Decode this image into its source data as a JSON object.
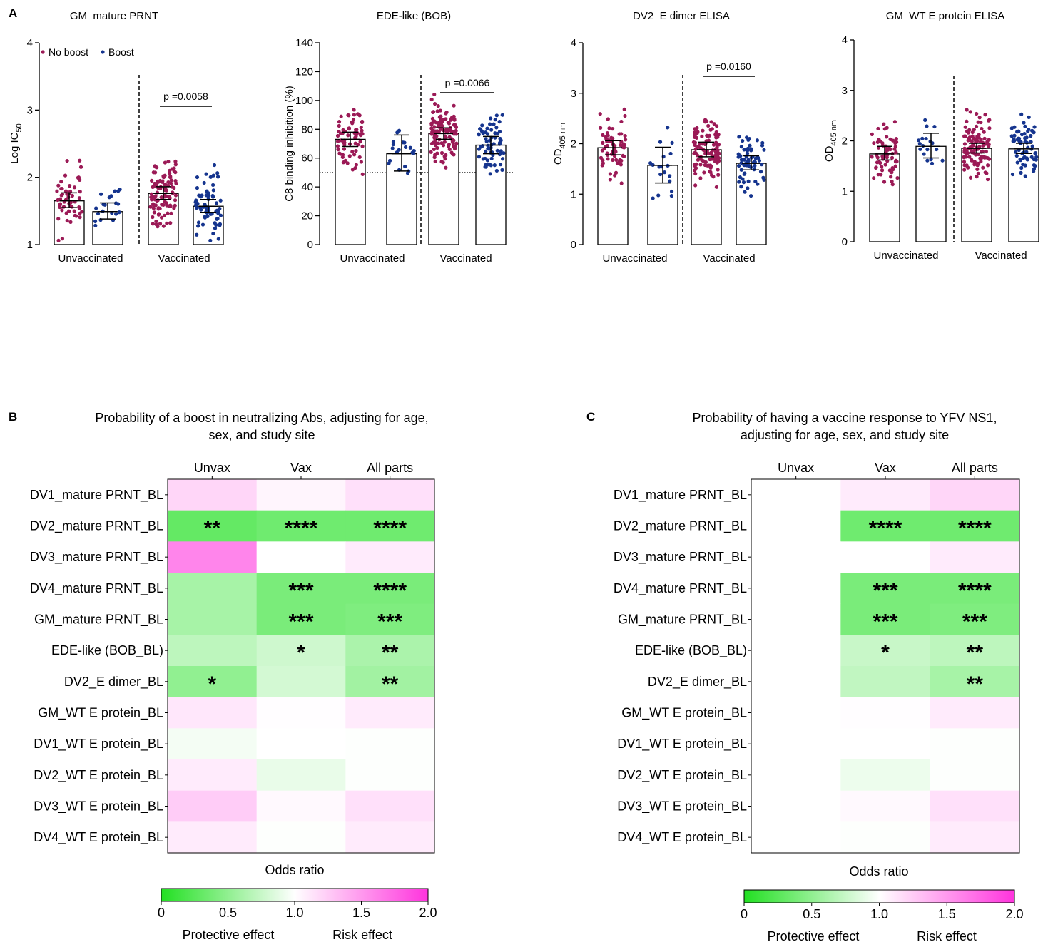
{
  "panel_labels": [
    "A",
    "B",
    "C"
  ],
  "legend": {
    "no_boost": "No boost",
    "boost": "Boost"
  },
  "colors": {
    "no_boost": "#9b1a56",
    "boost": "#15348e",
    "protective": "#22e022",
    "risk": "#ff33dd"
  },
  "chart_data": [
    {
      "type": "bar",
      "title": "GM_mature PRNT",
      "ylabel": "Log IC",
      "ylabel_sub": "50",
      "ylim": [
        1,
        4
      ],
      "yticks": [
        "1",
        "2",
        "3",
        "4"
      ],
      "groups": [
        "Unvaccinated",
        "Vaccinated"
      ],
      "series": [
        {
          "name": "No boost",
          "values": [
            1.65,
            1.76
          ],
          "ci": [
            [
              1.55,
              1.77
            ],
            [
              1.67,
              1.86
            ]
          ],
          "n": [
            55,
            100
          ]
        },
        {
          "name": "Boost",
          "values": [
            1.49,
            1.57
          ],
          "ci": [
            [
              1.38,
              1.62
            ],
            [
              1.48,
              1.67
            ]
          ],
          "n": [
            20,
            65
          ]
        }
      ],
      "comparison": {
        "label": "p =0.0058",
        "group": "Vaccinated"
      },
      "show_legend": true
    },
    {
      "type": "bar",
      "title": "EDE-like (BOB)",
      "ylabel": "C8 binding inhibition (%)",
      "ylim": [
        0,
        140
      ],
      "yticks": [
        "0",
        "20",
        "40",
        "60",
        "80",
        "100",
        "120",
        "140"
      ],
      "reference_line": 50,
      "groups": [
        "Unvaccinated",
        "Vaccinated"
      ],
      "series": [
        {
          "name": "No boost",
          "values": [
            73,
            77
          ],
          "ci": [
            [
              68,
              78
            ],
            [
              73,
              81
            ]
          ],
          "n": [
            70,
            120
          ]
        },
        {
          "name": "Boost",
          "values": [
            63,
            69
          ],
          "ci": [
            [
              51,
              76
            ],
            [
              63,
              75
            ]
          ],
          "n": [
            20,
            65
          ]
        }
      ],
      "comparison": {
        "label": "p =0.0066",
        "group": "Vaccinated"
      },
      "show_legend": false
    },
    {
      "type": "bar",
      "title": "DV2_E dimer ELISA",
      "ylabel": "OD",
      "ylabel_sub": "405 nm",
      "ylim": [
        0,
        4
      ],
      "yticks": [
        "0",
        "1",
        "2",
        "3",
        "4"
      ],
      "groups": [
        "Unvaccinated",
        "Vaccinated"
      ],
      "series": [
        {
          "name": "No boost",
          "values": [
            1.92,
            1.88
          ],
          "ci": [
            [
              1.78,
              2.06
            ],
            [
              1.74,
              2.03
            ]
          ],
          "n": [
            70,
            120
          ]
        },
        {
          "name": "Boost",
          "values": [
            1.57,
            1.61
          ],
          "ci": [
            [
              1.22,
              1.93
            ],
            [
              1.48,
              1.76
            ]
          ],
          "n": [
            18,
            65
          ]
        }
      ],
      "comparison": {
        "label": "p =0.0160",
        "group": "Vaccinated"
      },
      "show_legend": false
    },
    {
      "type": "bar",
      "title": "GM_WT E protein ELISA",
      "ylabel": "OD",
      "ylabel_sub": "405 nm",
      "ylim": [
        0,
        4
      ],
      "yticks": [
        "0",
        "1",
        "2",
        "3",
        "4"
      ],
      "groups": [
        "Unvaccinated",
        "Vaccinated"
      ],
      "series": [
        {
          "name": "No boost",
          "values": [
            1.74,
            1.85
          ],
          "ci": [
            [
              1.62,
              1.89
            ],
            [
              1.76,
              1.95
            ]
          ],
          "n": [
            70,
            120
          ]
        },
        {
          "name": "Boost",
          "values": [
            1.89,
            1.84
          ],
          "ci": [
            [
              1.66,
              2.15
            ],
            [
              1.75,
              1.95
            ]
          ],
          "n": [
            18,
            65
          ]
        }
      ],
      "comparison": null,
      "show_legend": false
    },
    {
      "type": "heatmap",
      "title": "Probability of a boost in neutralizing Abs, adjusting for age,",
      "title_line2": "sex, and study site",
      "columns": [
        "Unvax",
        "Vax",
        "All parts"
      ],
      "rows": [
        "DV1_mature PRNT_BL",
        "DV2_mature PRNT_BL",
        "DV3_mature PRNT_BL",
        "DV4_mature PRNT_BL",
        "GM_mature PRNT_BL",
        "EDE-like (BOB_BL)",
        "DV2_E dimer_BL",
        "GM_WT E protein_BL",
        "DV1_WT E protein_BL",
        "DV2_WT E protein_BL",
        "DV3_WT E protein_BL",
        "DV4_WT E protein_BL"
      ],
      "odds_ratio": [
        [
          1.2,
          1.05,
          1.15
        ],
        [
          0.3,
          0.35,
          0.35
        ],
        [
          1.6,
          1.0,
          1.1
        ],
        [
          0.6,
          0.4,
          0.4
        ],
        [
          0.6,
          0.4,
          0.42
        ],
        [
          0.7,
          0.78,
          0.62
        ],
        [
          0.5,
          0.8,
          0.58
        ],
        [
          1.12,
          1.01,
          1.1
        ],
        [
          0.95,
          1.0,
          0.99
        ],
        [
          1.1,
          0.9,
          0.99
        ],
        [
          1.25,
          1.03,
          1.15
        ],
        [
          1.1,
          0.99,
          1.1
        ]
      ],
      "significance": [
        [
          "",
          "",
          ""
        ],
        [
          "**",
          "****",
          "****"
        ],
        [
          "",
          "",
          ""
        ],
        [
          "",
          "***",
          "****"
        ],
        [
          "",
          "***",
          "***"
        ],
        [
          "",
          "*",
          "**"
        ],
        [
          "*",
          "",
          "**"
        ],
        [
          "",
          "",
          ""
        ],
        [
          "",
          "",
          ""
        ],
        [
          "",
          "",
          ""
        ],
        [
          "",
          "",
          ""
        ],
        [
          "",
          "",
          ""
        ]
      ],
      "colorbar": {
        "title": "Odds ratio",
        "range": [
          0,
          2
        ],
        "ticks": [
          "0",
          "0.5",
          "1.0",
          "1.5",
          "2.0"
        ],
        "low_label": "Protective effect",
        "high_label": "Risk effect"
      }
    },
    {
      "type": "heatmap",
      "title": "Probability of having a vaccine response to YFV NS1,",
      "title_line2": "adjusting for age, sex, and study site",
      "columns": [
        "Unvax",
        "Vax",
        "All parts"
      ],
      "rows": [
        "DV1_mature PRNT_BL",
        "DV2_mature PRNT_BL",
        "DV3_mature PRNT_BL",
        "DV4_mature PRNT_BL",
        "GM_mature PRNT_BL",
        "EDE-like (BOB_BL)",
        "DV2_E dimer_BL",
        "GM_WT E protein_BL",
        "DV1_WT E protein_BL",
        "DV2_WT E protein_BL",
        "DV3_WT E protein_BL",
        "DV4_WT E protein_BL"
      ],
      "odds_ratio": [
        [
          null,
          1.1,
          1.2
        ],
        [
          null,
          0.35,
          0.35
        ],
        [
          null,
          1.0,
          1.1
        ],
        [
          null,
          0.4,
          0.4
        ],
        [
          null,
          0.4,
          0.42
        ],
        [
          null,
          0.75,
          0.7
        ],
        [
          null,
          0.72,
          0.6
        ],
        [
          null,
          1.01,
          1.1
        ],
        [
          null,
          1.0,
          0.99
        ],
        [
          null,
          0.92,
          0.99
        ],
        [
          null,
          1.03,
          1.15
        ],
        [
          null,
          0.99,
          1.1
        ]
      ],
      "significance": [
        [
          "",
          "",
          ""
        ],
        [
          "",
          "****",
          "****"
        ],
        [
          "",
          "",
          ""
        ],
        [
          "",
          "***",
          "****"
        ],
        [
          "",
          "***",
          "***"
        ],
        [
          "",
          "*",
          "**"
        ],
        [
          "",
          "",
          "**"
        ],
        [
          "",
          "",
          ""
        ],
        [
          "",
          "",
          ""
        ],
        [
          "",
          "",
          ""
        ],
        [
          "",
          "",
          ""
        ],
        [
          "",
          "",
          ""
        ]
      ],
      "colorbar": {
        "title": "Odds ratio",
        "range": [
          0,
          2
        ],
        "ticks": [
          "0",
          "0.5",
          "1.0",
          "1.5",
          "2.0"
        ],
        "low_label": "Protective effect",
        "high_label": "Risk effect"
      }
    }
  ]
}
